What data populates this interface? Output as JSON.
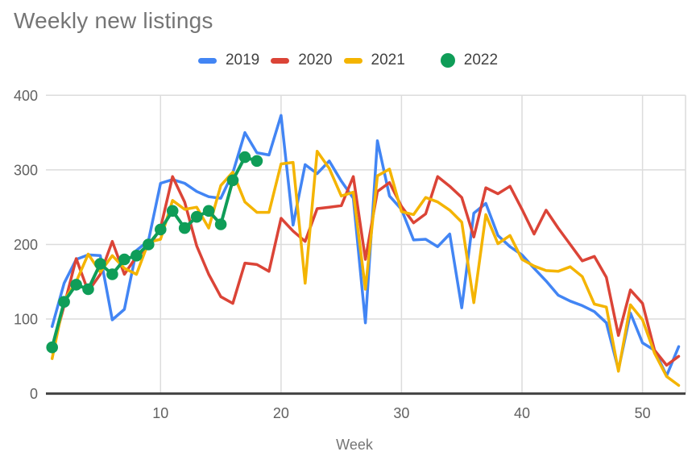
{
  "title": "Weekly new listings",
  "legend": {
    "items": [
      {
        "label": "2019",
        "color": "#4285F4",
        "marker": "line"
      },
      {
        "label": "2020",
        "color": "#DB4437",
        "marker": "line"
      },
      {
        "label": "2021",
        "color": "#F4B400",
        "marker": "line"
      },
      {
        "label": "2022",
        "color": "#0F9D58",
        "marker": "circle"
      }
    ]
  },
  "chart_data": {
    "type": "line",
    "title": "Weekly new listings",
    "xlabel": "Week",
    "ylabel": "",
    "xlim": [
      1,
      53
    ],
    "ylim": [
      0,
      400
    ],
    "x_ticks": [
      10,
      20,
      30,
      40,
      50
    ],
    "y_ticks": [
      0,
      100,
      200,
      300,
      400
    ],
    "grid": true,
    "legend_position": "top",
    "colors": {
      "gridline": "#dcdcdc",
      "baseline": "#424242",
      "tick_text": "#616161",
      "title_text": "#757575"
    },
    "x": [
      1,
      2,
      3,
      4,
      5,
      6,
      7,
      8,
      9,
      10,
      11,
      12,
      13,
      14,
      15,
      16,
      17,
      18,
      19,
      20,
      21,
      22,
      23,
      24,
      25,
      26,
      27,
      28,
      29,
      30,
      31,
      32,
      33,
      34,
      35,
      36,
      37,
      38,
      39,
      40,
      41,
      42,
      43,
      44,
      45,
      46,
      47,
      48,
      49,
      50,
      51,
      52,
      53
    ],
    "series": [
      {
        "name": "2019",
        "color": "#4285F4",
        "style": "line",
        "values": [
          90,
          148,
          180,
          186,
          185,
          99,
          113,
          192,
          205,
          282,
          287,
          282,
          271,
          264,
          262,
          296,
          350,
          323,
          320,
          373,
          226,
          307,
          295,
          312,
          285,
          262,
          95,
          339,
          265,
          247,
          206,
          207,
          197,
          214,
          115,
          242,
          255,
          212,
          197,
          186,
          168,
          151,
          132,
          124,
          118,
          110,
          95,
          32,
          108,
          68,
          58,
          24,
          63
        ]
      },
      {
        "name": "2020",
        "color": "#DB4437",
        "style": "line",
        "values": [
          58,
          118,
          181,
          137,
          160,
          204,
          160,
          184,
          196,
          222,
          291,
          257,
          198,
          160,
          130,
          121,
          175,
          173,
          164,
          235,
          218,
          204,
          248,
          250,
          252,
          291,
          180,
          271,
          283,
          251,
          229,
          241,
          291,
          278,
          263,
          210,
          276,
          268,
          278,
          247,
          214,
          246,
          222,
          200,
          178,
          184,
          156,
          78,
          139,
          121,
          58,
          38,
          50
        ]
      },
      {
        "name": "2021",
        "color": "#F4B400",
        "style": "line",
        "values": [
          47,
          125,
          150,
          187,
          163,
          185,
          168,
          160,
          203,
          207,
          259,
          247,
          250,
          222,
          279,
          297,
          257,
          243,
          243,
          308,
          310,
          148,
          325,
          302,
          265,
          270,
          140,
          292,
          301,
          244,
          240,
          263,
          257,
          246,
          230,
          122,
          240,
          201,
          212,
          180,
          171,
          165,
          164,
          170,
          157,
          120,
          116,
          30,
          119,
          99,
          54,
          23,
          11
        ]
      },
      {
        "name": "2022",
        "color": "#0F9D58",
        "style": "line+points",
        "values": [
          62,
          123,
          146,
          140,
          174,
          160,
          180,
          185,
          200,
          220,
          245,
          222,
          237,
          245,
          227,
          286,
          317,
          312
        ]
      }
    ]
  }
}
